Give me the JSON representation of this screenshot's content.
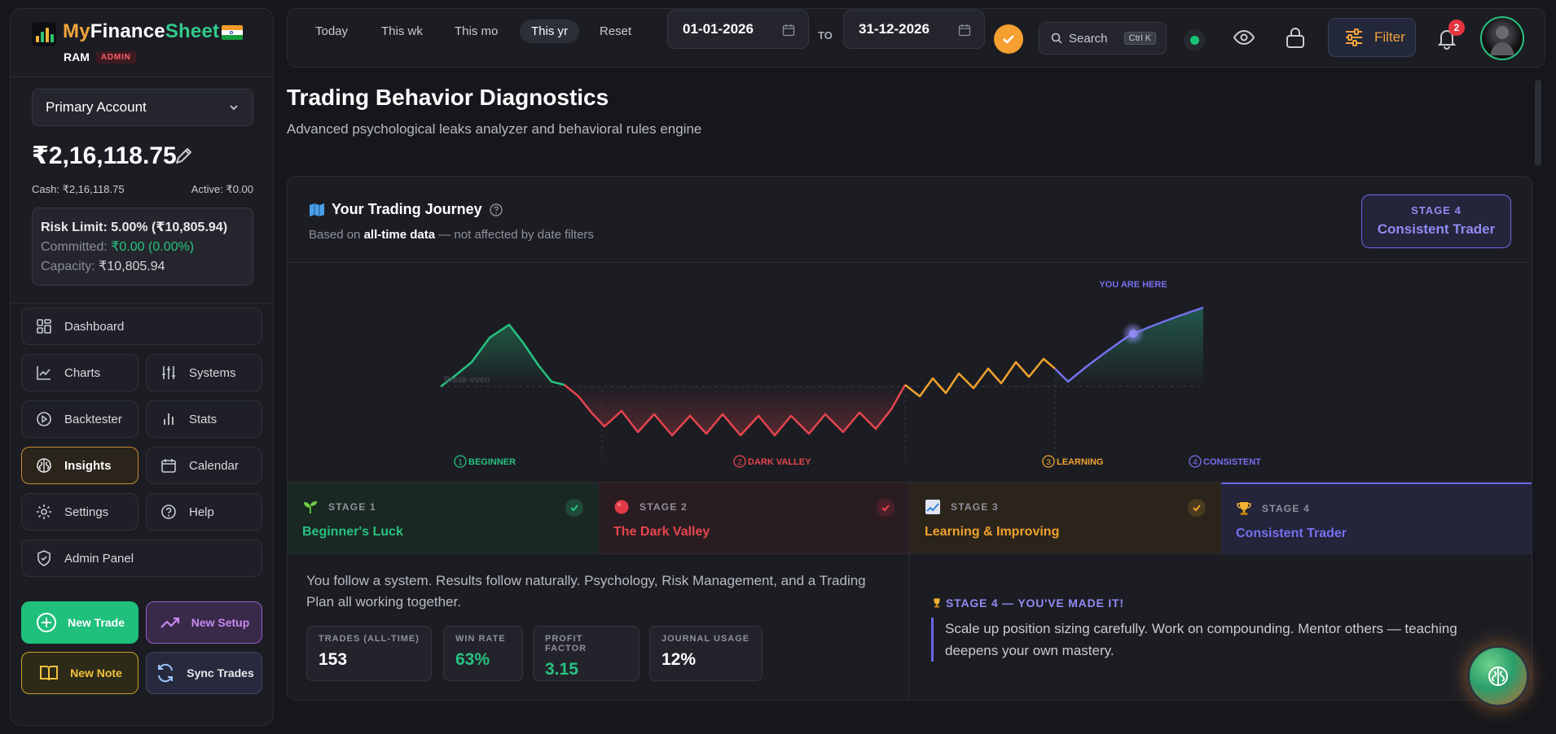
{
  "brand": {
    "name_part1": "My",
    "name_part2": "Finance",
    "name_part3": "Sheet",
    "user": "RAM",
    "role_badge": "ADMIN"
  },
  "account": {
    "selected": "Primary Account",
    "balance": "₹2,16,118.75",
    "cash": "Cash: ₹2,16,118.75",
    "active": "Active: ₹0.00",
    "risk_limit": "Risk Limit: 5.00% (₹10,805.94)",
    "committed_label": "Committed: ",
    "committed_value": "₹0.00 (0.00%)",
    "capacity_label": "Capacity: ",
    "capacity_value": "₹10,805.94"
  },
  "nav": {
    "dashboard": "Dashboard",
    "charts": "Charts",
    "systems": "Systems",
    "backtester": "Backtester",
    "stats": "Stats",
    "insights": "Insights",
    "calendar": "Calendar",
    "settings": "Settings",
    "help": "Help",
    "admin": "Admin Panel"
  },
  "actions": {
    "new_trade": "New Trade",
    "new_setup": "New Setup",
    "new_note": "New Note",
    "sync_trades": "Sync Trades"
  },
  "topbar": {
    "presets": [
      "Today",
      "This wk",
      "This mo",
      "This yr",
      "Reset"
    ],
    "active_preset": "This yr",
    "date_from": "01-01-2026",
    "to_label": "TO",
    "date_to": "31-12-2026",
    "search_label": "Search",
    "search_shortcut": "Ctrl K",
    "filter_label": "Filter",
    "notification_count": "2"
  },
  "page": {
    "title": "Trading Behavior Diagnostics",
    "subtitle": "Advanced psychological leaks analyzer and behavioral rules engine"
  },
  "journey": {
    "title": "Your Trading Journey",
    "sub_prefix": "Based on ",
    "sub_bold": "all-time data",
    "sub_suffix": " — not affected by date filters",
    "current_stage_label": "STAGE 4",
    "current_stage_name": "Consistent Trader",
    "you_are_here": "YOU ARE HERE",
    "break_even": "Break-even",
    "markers": [
      {
        "num": "1",
        "label": "BEGINNER",
        "color": "#27c27f"
      },
      {
        "num": "2",
        "label": "DARK VALLEY",
        "color": "#e5454f"
      },
      {
        "num": "3",
        "label": "LEARNING",
        "color": "#f0a22e"
      },
      {
        "num": "4",
        "label": "CONSISTENT",
        "color": "#7570ee"
      }
    ]
  },
  "stages": [
    {
      "label": "STAGE 1",
      "name": "Beginner's Luck",
      "color": "#27c27f",
      "icon": "seedling-icon",
      "done": true
    },
    {
      "label": "STAGE 2",
      "name": "The Dark Valley",
      "color": "#e5454f",
      "icon": "red-circle-icon",
      "done": true
    },
    {
      "label": "STAGE 3",
      "name": "Learning & Improving",
      "color": "#f0a22e",
      "icon": "chart-up-icon",
      "done": true
    },
    {
      "label": "STAGE 4",
      "name": "Consistent Trader",
      "color": "#7570ee",
      "icon": "trophy-icon",
      "done": false
    }
  ],
  "stage_detail": {
    "description": "You follow a system. Results follow naturally. Psychology, Risk Management, and a Trading Plan all working together.",
    "stats": [
      {
        "label": "TRADES (ALL-TIME)",
        "value": "153",
        "color": "#ffffff"
      },
      {
        "label": "WIN RATE",
        "value": "63%",
        "color": "#27c27f"
      },
      {
        "label": "PROFIT FACTOR",
        "value": "3.15",
        "color": "#27c27f"
      },
      {
        "label": "JOURNAL USAGE",
        "value": "12%",
        "color": "#ffffff"
      }
    ],
    "milestone_title": "STAGE 4 — YOU'VE MADE IT!",
    "milestone_text": "Scale up position sizing carefully. Work on compounding. Mentor others — teaching deepens your own mastery."
  },
  "colors": {
    "accent_orange": "#f5a030",
    "accent_green": "#27c27f",
    "accent_red": "#e5454f",
    "accent_purple": "#7570ee"
  }
}
